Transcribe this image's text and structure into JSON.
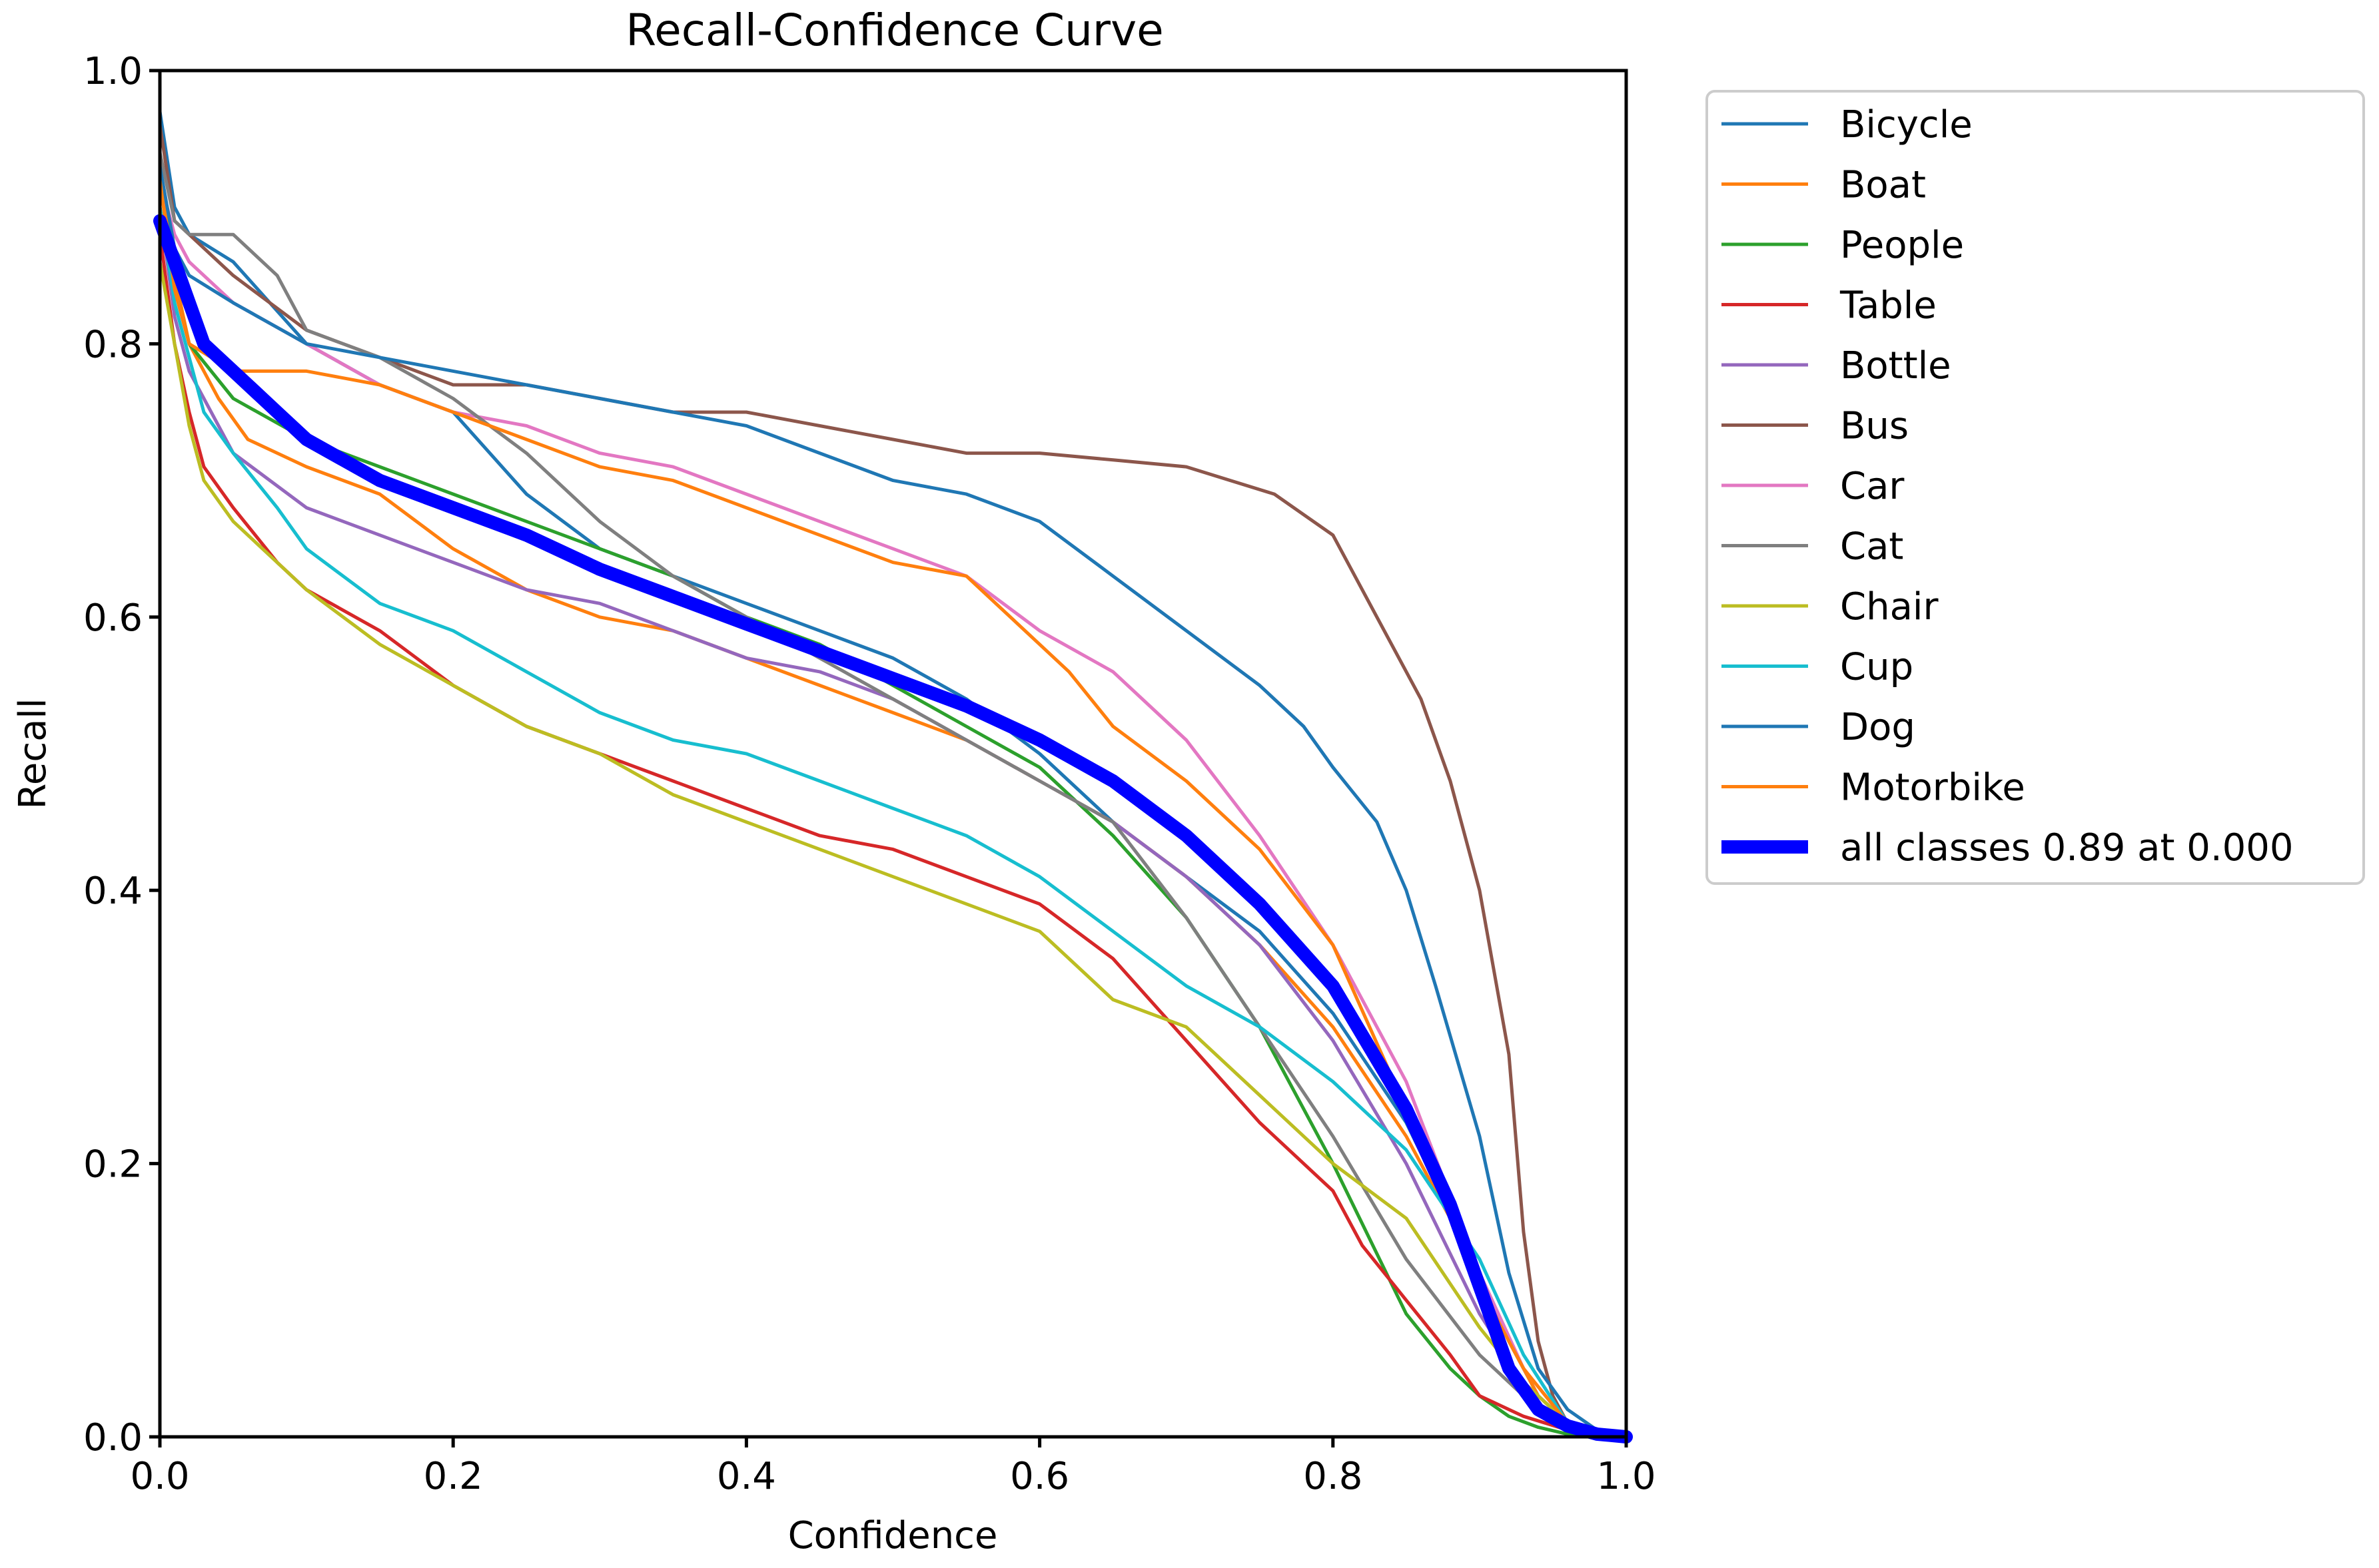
{
  "chart_data": {
    "type": "line",
    "title": "Recall-Confidence Curve",
    "xlabel": "Confidence",
    "ylabel": "Recall",
    "xlim": [
      0,
      1
    ],
    "ylim": [
      0,
      1
    ],
    "xticks": [
      "0.0",
      "0.2",
      "0.4",
      "0.6",
      "0.8",
      "1.0"
    ],
    "yticks": [
      "0.0",
      "0.2",
      "0.4",
      "0.6",
      "0.8",
      "1.0"
    ],
    "grid": false,
    "legend_position": "outside-upper-right",
    "series": [
      {
        "name": "Bicycle",
        "color": "#1f77b4",
        "emphasis": false,
        "x": [
          0,
          0.01,
          0.02,
          0.05,
          0.1,
          0.15,
          0.2,
          0.25,
          0.3,
          0.35,
          0.4,
          0.45,
          0.5,
          0.55,
          0.6,
          0.65,
          0.7,
          0.75,
          0.8,
          0.85,
          0.9,
          0.92,
          0.94,
          0.96,
          0.98,
          1.0
        ],
        "y": [
          0.97,
          0.9,
          0.88,
          0.86,
          0.8,
          0.77,
          0.75,
          0.69,
          0.65,
          0.63,
          0.61,
          0.59,
          0.57,
          0.54,
          0.5,
          0.45,
          0.41,
          0.37,
          0.31,
          0.23,
          0.12,
          0.07,
          0.03,
          0.01,
          0.003,
          0.0
        ]
      },
      {
        "name": "Boat",
        "color": "#ff7f0e",
        "emphasis": false,
        "x": [
          0,
          0.01,
          0.02,
          0.04,
          0.06,
          0.1,
          0.15,
          0.2,
          0.25,
          0.3,
          0.35,
          0.4,
          0.45,
          0.5,
          0.55,
          0.6,
          0.65,
          0.7,
          0.75,
          0.8,
          0.85,
          0.9,
          0.92,
          0.94,
          0.96,
          0.98,
          1.0
        ],
        "y": [
          0.93,
          0.85,
          0.8,
          0.76,
          0.73,
          0.71,
          0.69,
          0.65,
          0.62,
          0.6,
          0.59,
          0.57,
          0.55,
          0.53,
          0.51,
          0.48,
          0.45,
          0.41,
          0.36,
          0.3,
          0.22,
          0.12,
          0.07,
          0.03,
          0.01,
          0.003,
          0.0
        ]
      },
      {
        "name": "People",
        "color": "#2ca02c",
        "emphasis": false,
        "x": [
          0,
          0.01,
          0.02,
          0.05,
          0.1,
          0.15,
          0.2,
          0.25,
          0.3,
          0.35,
          0.4,
          0.45,
          0.5,
          0.55,
          0.6,
          0.65,
          0.7,
          0.75,
          0.8,
          0.85,
          0.88,
          0.9,
          0.92,
          0.94,
          0.96,
          1.0
        ],
        "y": [
          0.9,
          0.84,
          0.8,
          0.76,
          0.73,
          0.71,
          0.69,
          0.67,
          0.65,
          0.63,
          0.6,
          0.58,
          0.55,
          0.52,
          0.49,
          0.44,
          0.38,
          0.3,
          0.2,
          0.09,
          0.05,
          0.03,
          0.015,
          0.007,
          0.002,
          0.0
        ]
      },
      {
        "name": "Table",
        "color": "#d62728",
        "emphasis": false,
        "x": [
          0,
          0.01,
          0.02,
          0.03,
          0.05,
          0.08,
          0.1,
          0.15,
          0.2,
          0.25,
          0.3,
          0.35,
          0.4,
          0.45,
          0.5,
          0.55,
          0.6,
          0.65,
          0.7,
          0.75,
          0.8,
          0.82,
          0.85,
          0.88,
          0.9,
          0.93,
          0.96,
          1.0
        ],
        "y": [
          0.88,
          0.8,
          0.75,
          0.71,
          0.68,
          0.64,
          0.62,
          0.59,
          0.55,
          0.52,
          0.5,
          0.48,
          0.46,
          0.44,
          0.43,
          0.41,
          0.39,
          0.35,
          0.29,
          0.23,
          0.18,
          0.14,
          0.1,
          0.06,
          0.03,
          0.015,
          0.005,
          0.0
        ]
      },
      {
        "name": "Bottle",
        "color": "#9467bd",
        "emphasis": false,
        "x": [
          0,
          0.01,
          0.02,
          0.05,
          0.1,
          0.15,
          0.2,
          0.25,
          0.3,
          0.35,
          0.4,
          0.45,
          0.5,
          0.55,
          0.6,
          0.65,
          0.7,
          0.75,
          0.8,
          0.85,
          0.9,
          0.93,
          0.96,
          1.0
        ],
        "y": [
          0.9,
          0.82,
          0.78,
          0.72,
          0.68,
          0.66,
          0.64,
          0.62,
          0.61,
          0.59,
          0.57,
          0.56,
          0.54,
          0.51,
          0.48,
          0.45,
          0.41,
          0.36,
          0.29,
          0.2,
          0.09,
          0.04,
          0.01,
          0.0
        ]
      },
      {
        "name": "Bus",
        "color": "#8c564b",
        "emphasis": false,
        "x": [
          0,
          0.01,
          0.02,
          0.05,
          0.1,
          0.15,
          0.2,
          0.25,
          0.3,
          0.35,
          0.4,
          0.45,
          0.5,
          0.55,
          0.6,
          0.65,
          0.7,
          0.73,
          0.76,
          0.8,
          0.83,
          0.86,
          0.88,
          0.9,
          0.92,
          0.93,
          0.94,
          0.95,
          0.96,
          0.98,
          1.0
        ],
        "y": [
          0.96,
          0.89,
          0.88,
          0.85,
          0.81,
          0.79,
          0.77,
          0.77,
          0.76,
          0.75,
          0.75,
          0.74,
          0.73,
          0.72,
          0.72,
          0.715,
          0.71,
          0.7,
          0.69,
          0.66,
          0.6,
          0.54,
          0.48,
          0.4,
          0.28,
          0.15,
          0.07,
          0.03,
          0.01,
          0.003,
          0.0
        ]
      },
      {
        "name": "Car",
        "color": "#e377c2",
        "emphasis": false,
        "x": [
          0,
          0.01,
          0.02,
          0.05,
          0.1,
          0.15,
          0.2,
          0.25,
          0.3,
          0.35,
          0.4,
          0.45,
          0.5,
          0.55,
          0.6,
          0.65,
          0.7,
          0.75,
          0.8,
          0.85,
          0.9,
          0.93,
          0.96,
          1.0
        ],
        "y": [
          0.92,
          0.88,
          0.86,
          0.83,
          0.8,
          0.77,
          0.75,
          0.74,
          0.72,
          0.71,
          0.69,
          0.67,
          0.65,
          0.63,
          0.59,
          0.56,
          0.51,
          0.44,
          0.36,
          0.26,
          0.12,
          0.05,
          0.01,
          0.0
        ]
      },
      {
        "name": "Cat",
        "color": "#7f7f7f",
        "emphasis": false,
        "x": [
          0,
          0.01,
          0.02,
          0.05,
          0.08,
          0.1,
          0.15,
          0.2,
          0.25,
          0.3,
          0.35,
          0.4,
          0.45,
          0.5,
          0.55,
          0.6,
          0.65,
          0.7,
          0.75,
          0.8,
          0.85,
          0.9,
          0.93,
          0.96,
          1.0
        ],
        "y": [
          0.94,
          0.89,
          0.88,
          0.88,
          0.85,
          0.81,
          0.79,
          0.76,
          0.72,
          0.67,
          0.63,
          0.6,
          0.57,
          0.54,
          0.51,
          0.48,
          0.45,
          0.38,
          0.3,
          0.22,
          0.13,
          0.06,
          0.03,
          0.01,
          0.0
        ]
      },
      {
        "name": "Chair",
        "color": "#bcbd22",
        "emphasis": false,
        "x": [
          0,
          0.01,
          0.02,
          0.03,
          0.05,
          0.1,
          0.15,
          0.2,
          0.25,
          0.3,
          0.35,
          0.4,
          0.45,
          0.5,
          0.55,
          0.6,
          0.65,
          0.7,
          0.75,
          0.8,
          0.85,
          0.9,
          0.93,
          0.96,
          1.0
        ],
        "y": [
          0.86,
          0.8,
          0.74,
          0.7,
          0.67,
          0.62,
          0.58,
          0.55,
          0.52,
          0.5,
          0.47,
          0.45,
          0.43,
          0.41,
          0.39,
          0.37,
          0.32,
          0.3,
          0.25,
          0.2,
          0.16,
          0.08,
          0.04,
          0.01,
          0.0
        ]
      },
      {
        "name": "Cup",
        "color": "#17becf",
        "emphasis": false,
        "x": [
          0,
          0.01,
          0.02,
          0.03,
          0.05,
          0.08,
          0.1,
          0.15,
          0.2,
          0.25,
          0.3,
          0.35,
          0.4,
          0.45,
          0.5,
          0.55,
          0.6,
          0.65,
          0.7,
          0.75,
          0.8,
          0.85,
          0.9,
          0.93,
          0.96,
          1.0
        ],
        "y": [
          0.9,
          0.83,
          0.79,
          0.75,
          0.72,
          0.68,
          0.65,
          0.61,
          0.59,
          0.56,
          0.53,
          0.51,
          0.5,
          0.48,
          0.46,
          0.44,
          0.41,
          0.37,
          0.33,
          0.3,
          0.26,
          0.21,
          0.13,
          0.06,
          0.01,
          0.0
        ]
      },
      {
        "name": "Dog",
        "color": "#1f77b4",
        "emphasis": false,
        "x": [
          0,
          0.01,
          0.02,
          0.05,
          0.1,
          0.15,
          0.2,
          0.25,
          0.3,
          0.35,
          0.4,
          0.45,
          0.5,
          0.55,
          0.6,
          0.65,
          0.7,
          0.75,
          0.78,
          0.8,
          0.83,
          0.85,
          0.87,
          0.9,
          0.92,
          0.94,
          0.96,
          0.98,
          1.0
        ],
        "y": [
          0.93,
          0.87,
          0.85,
          0.83,
          0.8,
          0.79,
          0.78,
          0.77,
          0.76,
          0.75,
          0.74,
          0.72,
          0.7,
          0.69,
          0.67,
          0.63,
          0.59,
          0.55,
          0.52,
          0.49,
          0.45,
          0.4,
          0.33,
          0.22,
          0.12,
          0.05,
          0.02,
          0.005,
          0.0
        ]
      },
      {
        "name": "Motorbike",
        "color": "#ff7f0e",
        "emphasis": false,
        "x": [
          0,
          0.01,
          0.02,
          0.05,
          0.1,
          0.15,
          0.2,
          0.25,
          0.3,
          0.35,
          0.4,
          0.45,
          0.5,
          0.55,
          0.6,
          0.62,
          0.65,
          0.7,
          0.75,
          0.8,
          0.85,
          0.9,
          0.93,
          0.96,
          1.0
        ],
        "y": [
          0.92,
          0.84,
          0.8,
          0.78,
          0.78,
          0.77,
          0.75,
          0.73,
          0.71,
          0.7,
          0.68,
          0.66,
          0.64,
          0.63,
          0.58,
          0.56,
          0.52,
          0.48,
          0.43,
          0.36,
          0.24,
          0.11,
          0.05,
          0.01,
          0.0
        ]
      },
      {
        "name": "all classes 0.89 at 0.000",
        "color": "#0000ff",
        "emphasis": true,
        "x": [
          0,
          0.01,
          0.02,
          0.03,
          0.05,
          0.08,
          0.1,
          0.15,
          0.2,
          0.25,
          0.3,
          0.35,
          0.4,
          0.45,
          0.5,
          0.55,
          0.6,
          0.65,
          0.7,
          0.75,
          0.8,
          0.85,
          0.88,
          0.9,
          0.92,
          0.94,
          0.96,
          0.98,
          1.0
        ],
        "y": [
          0.89,
          0.86,
          0.83,
          0.8,
          0.78,
          0.75,
          0.73,
          0.7,
          0.68,
          0.66,
          0.635,
          0.615,
          0.595,
          0.575,
          0.555,
          0.535,
          0.51,
          0.48,
          0.44,
          0.39,
          0.33,
          0.24,
          0.17,
          0.11,
          0.05,
          0.02,
          0.008,
          0.002,
          0.0
        ]
      }
    ]
  }
}
